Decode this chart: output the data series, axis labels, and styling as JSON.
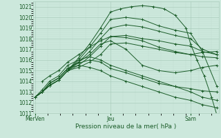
{
  "xlabel": "Pression niveau de la mer( hPa )",
  "bg_color": "#cce8dc",
  "grid_major_color": "#aaccbb",
  "grid_minor_color": "#c0ddd0",
  "line_color": "#1a5c28",
  "ylim": [
    1011,
    1021.5
  ],
  "yticks": [
    1011,
    1012,
    1013,
    1014,
    1015,
    1016,
    1017,
    1018,
    1019,
    1020,
    1021
  ],
  "xtick_labels": [
    "MerVen",
    "Jeu",
    "Sam"
  ],
  "xtick_pos": [
    0.0,
    0.415,
    0.855
  ],
  "xlim": [
    -0.01,
    1.01
  ],
  "lines": [
    {
      "x": [
        0.0,
        0.04,
        0.08,
        0.13,
        0.18,
        0.24,
        0.3,
        0.36,
        0.415,
        0.47,
        0.53,
        0.59,
        0.65,
        0.71,
        0.77,
        0.83,
        0.855,
        0.89,
        0.93,
        0.97,
        1.0
      ],
      "y": [
        1012.5,
        1013.0,
        1013.6,
        1014.1,
        1015.0,
        1016.2,
        1017.5,
        1019.0,
        1020.5,
        1020.8,
        1021.0,
        1021.1,
        1021.0,
        1020.8,
        1020.2,
        1019.0,
        1017.5,
        1016.0,
        1014.5,
        1012.5,
        1010.8
      ]
    },
    {
      "x": [
        0.0,
        0.04,
        0.08,
        0.13,
        0.18,
        0.24,
        0.3,
        0.36,
        0.415,
        0.5,
        0.59,
        0.68,
        0.77,
        0.855,
        0.92,
        1.0
      ],
      "y": [
        1012.5,
        1013.0,
        1013.6,
        1014.1,
        1015.0,
        1016.0,
        1017.2,
        1018.5,
        1019.8,
        1020.0,
        1019.8,
        1019.2,
        1018.8,
        1018.5,
        1016.8,
        1013.5
      ]
    },
    {
      "x": [
        0.0,
        0.04,
        0.08,
        0.13,
        0.18,
        0.24,
        0.3,
        0.36,
        0.415,
        0.5,
        0.59,
        0.68,
        0.77,
        0.855,
        0.92,
        1.0
      ],
      "y": [
        1012.5,
        1013.0,
        1013.6,
        1014.1,
        1015.0,
        1015.8,
        1016.8,
        1018.0,
        1019.0,
        1019.3,
        1019.1,
        1018.7,
        1018.3,
        1018.0,
        1017.0,
        1016.5
      ]
    },
    {
      "x": [
        0.0,
        0.04,
        0.08,
        0.13,
        0.18,
        0.24,
        0.3,
        0.36,
        0.415,
        0.5,
        0.59,
        0.68,
        0.77,
        0.855,
        0.92,
        1.0
      ],
      "y": [
        1012.5,
        1013.0,
        1013.6,
        1014.1,
        1015.0,
        1015.5,
        1016.3,
        1017.3,
        1018.2,
        1018.3,
        1018.0,
        1017.8,
        1017.5,
        1017.3,
        1016.8,
        1016.5
      ]
    },
    {
      "x": [
        0.0,
        0.04,
        0.08,
        0.13,
        0.18,
        0.24,
        0.3,
        0.36,
        0.415,
        0.5,
        0.59,
        0.68,
        0.77,
        0.855,
        0.92,
        1.0
      ],
      "y": [
        1012.5,
        1013.0,
        1013.6,
        1014.1,
        1015.0,
        1015.3,
        1015.8,
        1016.5,
        1017.5,
        1017.6,
        1017.3,
        1017.0,
        1016.7,
        1016.5,
        1016.3,
        1016.2
      ]
    },
    {
      "x": [
        0.0,
        0.04,
        0.08,
        0.13,
        0.18,
        0.24,
        0.3,
        0.36,
        0.415,
        0.5,
        0.59,
        0.68,
        0.77,
        0.855,
        0.92,
        1.0
      ],
      "y": [
        1012.5,
        1013.0,
        1013.8,
        1014.3,
        1015.2,
        1015.8,
        1016.5,
        1017.5,
        1017.8,
        1017.0,
        1015.5,
        1015.0,
        1014.8,
        1015.0,
        1015.3,
        1015.5
      ]
    },
    {
      "x": [
        0.0,
        0.04,
        0.08,
        0.13,
        0.18,
        0.24,
        0.3,
        0.36,
        0.415,
        0.5,
        0.59,
        0.68,
        0.77,
        0.855,
        0.92,
        1.0
      ],
      "y": [
        1012.5,
        1013.0,
        1013.8,
        1014.3,
        1015.2,
        1015.7,
        1016.0,
        1015.8,
        1015.2,
        1014.8,
        1014.3,
        1013.8,
        1013.5,
        1013.3,
        1013.1,
        1013.0
      ]
    },
    {
      "x": [
        0.0,
        0.04,
        0.08,
        0.13,
        0.18,
        0.24,
        0.3,
        0.36,
        0.415,
        0.5,
        0.59,
        0.68,
        0.77,
        0.855,
        0.92,
        1.0
      ],
      "y": [
        1012.5,
        1013.0,
        1013.8,
        1014.3,
        1015.2,
        1015.5,
        1015.3,
        1015.0,
        1014.5,
        1014.0,
        1013.5,
        1013.0,
        1012.5,
        1012.2,
        1011.8,
        1011.5
      ]
    },
    {
      "x": [
        0.04,
        0.08,
        0.13,
        0.18,
        0.24,
        0.3,
        0.36,
        0.415,
        0.5,
        0.59,
        0.68,
        0.77,
        0.855,
        0.92,
        1.0
      ],
      "y": [
        1014.0,
        1014.5,
        1015.0,
        1015.8,
        1016.5,
        1017.2,
        1017.8,
        1018.2,
        1018.1,
        1017.8,
        1017.2,
        1016.8,
        1016.5,
        1016.7,
        1016.8
      ]
    },
    {
      "x": [
        0.0,
        0.04,
        0.08,
        0.13,
        0.18,
        0.24,
        0.3,
        0.36,
        0.415,
        0.5,
        0.59,
        0.68,
        0.77,
        0.855,
        0.92,
        1.0
      ],
      "y": [
        1012.5,
        1013.2,
        1014.0,
        1014.5,
        1015.5,
        1016.0,
        1016.3,
        1016.0,
        1015.5,
        1015.0,
        1014.5,
        1014.0,
        1013.5,
        1013.0,
        1012.5,
        1012.2
      ]
    }
  ]
}
